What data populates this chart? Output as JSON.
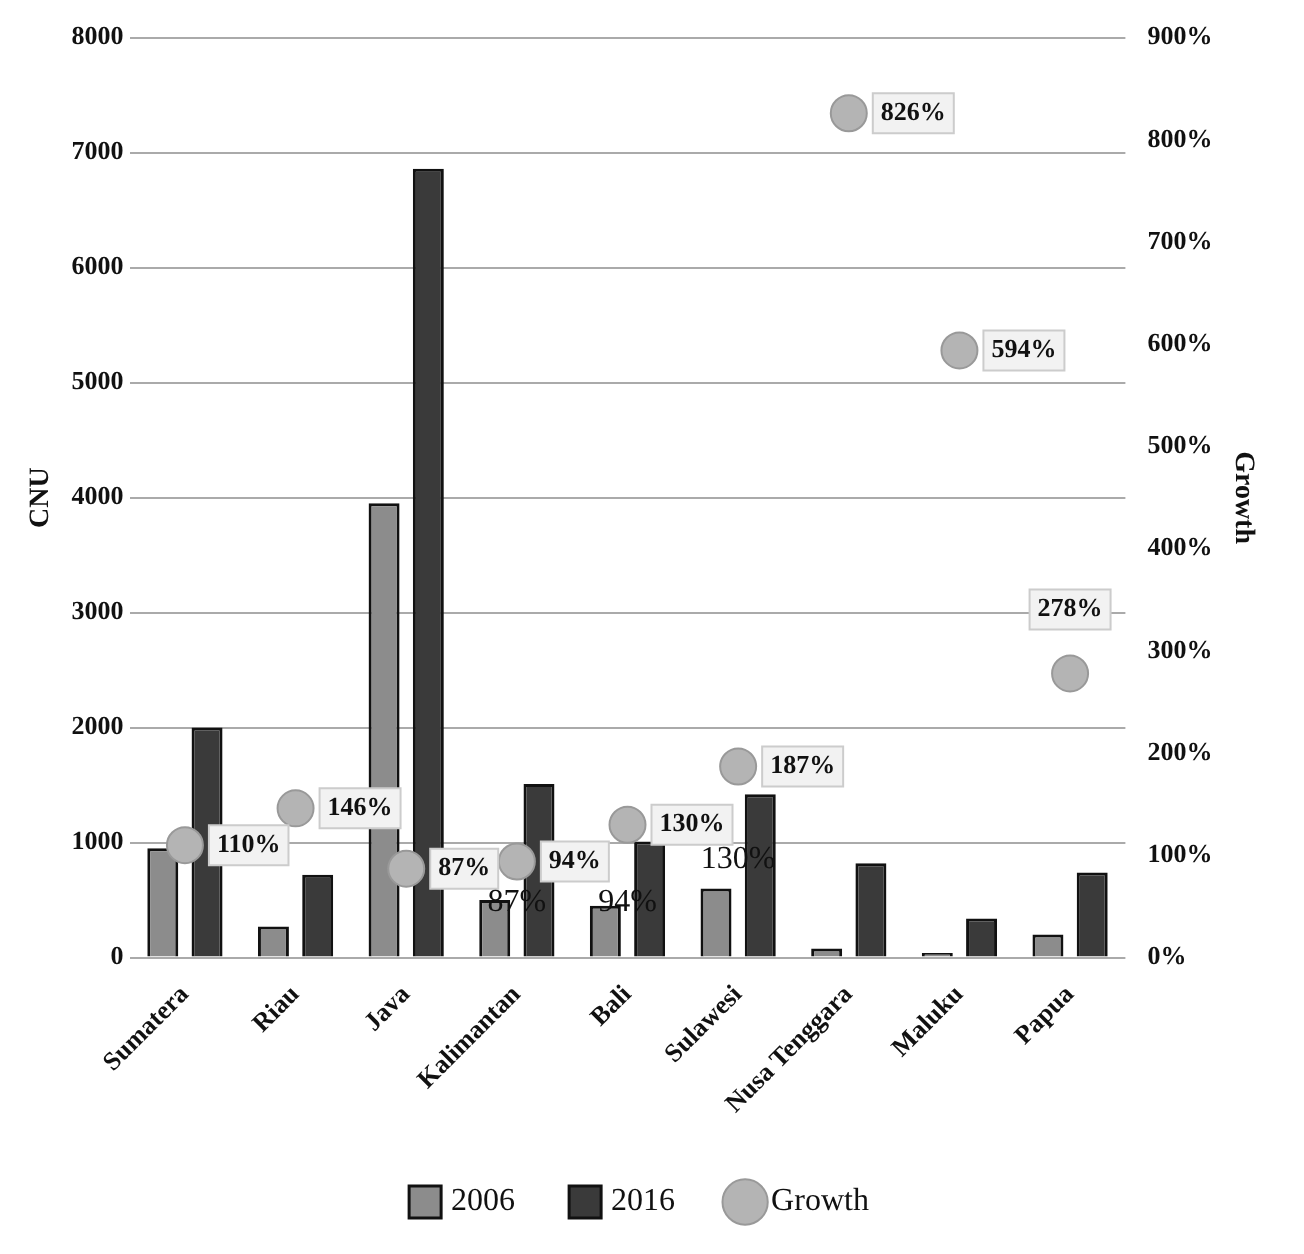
{
  "chart_data": {
    "type": "bar",
    "ylabel": "CNU",
    "y2label": "Growth",
    "categories": [
      "Sumatera",
      "Riau",
      "Java",
      "Kalimantan",
      "Bali",
      "Sulawesi",
      "Nusa Tenggara",
      "Maluku",
      "Papua"
    ],
    "series": [
      {
        "name": "2006",
        "color": "#8c8c8c",
        "values": [
          950,
          270,
          3950,
          500,
          450,
          600,
          80,
          40,
          200
        ]
      },
      {
        "name": "2016",
        "color": "#3a3a3a",
        "values": [
          2000,
          720,
          6860,
          1510,
          1010,
          1420,
          820,
          340,
          740
        ]
      },
      {
        "name": "Growth",
        "type": "scatter",
        "axis": "y2",
        "color": "#b4b4b4",
        "marker": "circle",
        "values": [
          110,
          146,
          87,
          94,
          130,
          187,
          826,
          594,
          278
        ],
        "value_labels": [
          "110%",
          "146%",
          "87%",
          "94%",
          "130%",
          "187%",
          "826%",
          "594%",
          "278%"
        ]
      }
    ],
    "ylim": [
      0,
      8000
    ],
    "yticks": [
      0,
      1000,
      2000,
      3000,
      4000,
      5000,
      6000,
      7000,
      8000
    ],
    "y2lim": [
      0,
      900
    ],
    "y2ticks": [
      {
        "value": 0,
        "label": "0%"
      },
      {
        "value": 100,
        "label": "100%"
      },
      {
        "value": 200,
        "label": "200%"
      },
      {
        "value": 300,
        "label": "300%"
      },
      {
        "value": 400,
        "label": "400%"
      },
      {
        "value": 500,
        "label": "500%"
      },
      {
        "value": 600,
        "label": "600%"
      },
      {
        "value": 700,
        "label": "700%"
      },
      {
        "value": 800,
        "label": "800%"
      },
      {
        "value": 900,
        "label": "900%"
      }
    ],
    "annotations": [
      {
        "text": "87%",
        "x": "Kalimantan",
        "y": 480
      },
      {
        "text": "94%",
        "x": "Bali",
        "y": 480
      },
      {
        "text": "130%",
        "x": "Sulawesi",
        "y": 850
      }
    ],
    "grid": "y",
    "legend": "bottom"
  }
}
